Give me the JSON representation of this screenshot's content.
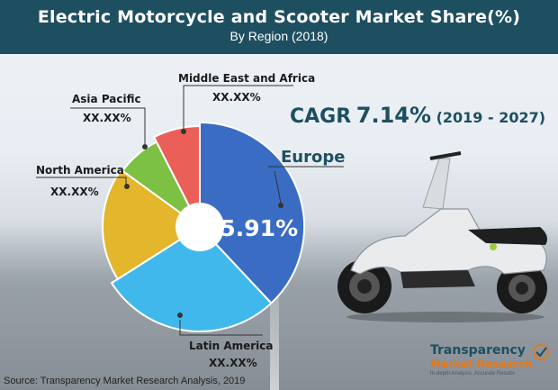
{
  "header": {
    "title": "Electric Motorcycle and Scooter Market Share(%)",
    "subtitle": "By Region (2018)"
  },
  "cagr": {
    "prefix": "CAGR",
    "value": "7.14%",
    "period": "(2019 - 2027)"
  },
  "center_label": "85.91%",
  "source": "Source: Transparency Market Research Analysis, 2019",
  "logo": {
    "line1": "Transparency",
    "line2": "Market Research",
    "tagline": "In-depth Analysis. Accurate Results"
  },
  "colors": {
    "header": "#1e4f61",
    "europe": "#3a6cc4",
    "latin_america": "#41b8ec",
    "north_america": "#e3b62b",
    "asia_pacific": "#7cc044",
    "middle_east_africa": "#ea5f58"
  },
  "chart_data": {
    "type": "pie",
    "donut": true,
    "slices": [
      {
        "label": "Europe",
        "display": "",
        "value": 38,
        "color": "#3a6cc4"
      },
      {
        "label": "Latin America",
        "display": "XX.XX%",
        "value": 28,
        "color": "#41b8ec"
      },
      {
        "label": "North America",
        "display": "XX.XX%",
        "value": 19,
        "color": "#e3b62b"
      },
      {
        "label": "Asia Pacific",
        "display": "XX.XX%",
        "value": 7.5,
        "color": "#7cc044"
      },
      {
        "label": "Middle East and Africa",
        "display": "XX.XX%",
        "value": 7.5,
        "color": "#ea5f58"
      }
    ]
  }
}
